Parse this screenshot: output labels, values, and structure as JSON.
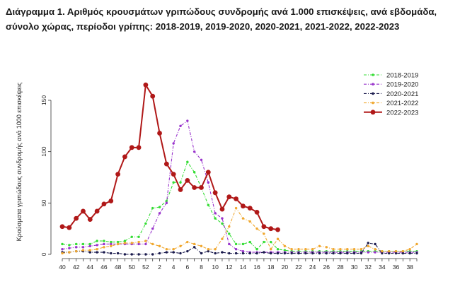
{
  "chart_data": {
    "type": "line",
    "title": "Διάγραμμα 1. Αριθμός κρουσμάτων γριπώδους συνδρομής ανά 1.000 επισκέψεις, ανά εβδομάδα, σύνολο χώρας, περίοδοι γρίπης: 2018-2019, 2019-2020, 2020-2021, 2021-2022, 2022-2023",
    "xlabel": "",
    "ylabel": "Κρούσματα γριπώδους συνδρομής ανά 1000 επισκέψεις",
    "x": [
      "40",
      "41",
      "42",
      "43",
      "44",
      "45",
      "46",
      "47",
      "48",
      "49",
      "50",
      "51",
      "52",
      "1",
      "2",
      "3",
      "4",
      "5",
      "6",
      "7",
      "8",
      "9",
      "10",
      "11",
      "12",
      "13",
      "14",
      "15",
      "16",
      "17",
      "18",
      "19",
      "20",
      "21",
      "22",
      "23",
      "24",
      "25",
      "26",
      "27",
      "28",
      "29",
      "30",
      "31",
      "32",
      "33",
      "34",
      "35",
      "36",
      "37",
      "38",
      "39"
    ],
    "x_tick_labels": [
      "40",
      "42",
      "44",
      "46",
      "48",
      "50",
      "52",
      "2",
      "4",
      "6",
      "8",
      "10",
      "12",
      "14",
      "16",
      "18",
      "20",
      "22",
      "24",
      "26",
      "28",
      "30",
      "32",
      "34",
      "36",
      "38"
    ],
    "yticks": [
      0,
      50,
      100,
      150
    ],
    "ylim": [
      0,
      175
    ],
    "grid": false,
    "legend_position": "top-right",
    "series": [
      {
        "name": "2018-2019",
        "color": "#33dd33",
        "style": "dashdot",
        "values": [
          10,
          9,
          10,
          10,
          10,
          13,
          13,
          12,
          12,
          13,
          17,
          17,
          30,
          45,
          46,
          52,
          70,
          70,
          90,
          80,
          65,
          48,
          35,
          30,
          20,
          10,
          10,
          12,
          5,
          12,
          12,
          5,
          4,
          3,
          3,
          3,
          3,
          3,
          3,
          3,
          3,
          3,
          3,
          3,
          3,
          3,
          3,
          3,
          3,
          3,
          3,
          3
        ]
      },
      {
        "name": "2019-2020",
        "color": "#9933cc",
        "style": "dashdot",
        "values": [
          5,
          6,
          7,
          7,
          8,
          9,
          10,
          10,
          10,
          10,
          10,
          10,
          10,
          25,
          40,
          50,
          108,
          125,
          130,
          100,
          92,
          70,
          40,
          35,
          10,
          5,
          3,
          2,
          2,
          2,
          2,
          2,
          2,
          2,
          2,
          2,
          2,
          2,
          2,
          2,
          2,
          2,
          2,
          2,
          2,
          2,
          2,
          2,
          2,
          2,
          2,
          2
        ]
      },
      {
        "name": "2020-2021",
        "color": "#1a1a4d",
        "style": "dashdot",
        "values": [
          2,
          2,
          3,
          3,
          2,
          2,
          2,
          1,
          1,
          0,
          0,
          0,
          0,
          0,
          1,
          2,
          2,
          1,
          3,
          7,
          1,
          3,
          1,
          2,
          1,
          1,
          1,
          1,
          1,
          2,
          1,
          1,
          1,
          1,
          1,
          1,
          1,
          1,
          1,
          1,
          1,
          1,
          1,
          1,
          11,
          10,
          1,
          1,
          1,
          1,
          1,
          1
        ]
      },
      {
        "name": "2021-2022",
        "color": "#f0a830",
        "style": "dashdot",
        "values": [
          1,
          2,
          3,
          4,
          4,
          5,
          7,
          8,
          10,
          11,
          11,
          12,
          13,
          10,
          8,
          5,
          5,
          8,
          12,
          10,
          8,
          5,
          5,
          15,
          27,
          45,
          35,
          32,
          25,
          20,
          5,
          15,
          8,
          5,
          5,
          5,
          5,
          8,
          7,
          5,
          5,
          5,
          5,
          5,
          8,
          5,
          3,
          3,
          3,
          3,
          5,
          10
        ]
      },
      {
        "name": "2022-2023",
        "color": "#b01818",
        "style": "solid",
        "values": [
          27,
          26,
          35,
          42,
          34,
          42,
          49,
          52,
          78,
          95,
          104,
          104,
          165,
          154,
          118,
          88,
          78,
          63,
          72,
          65,
          65,
          80,
          60,
          44,
          56,
          54,
          47,
          45,
          41,
          27,
          25,
          24,
          null,
          null,
          null,
          null,
          null,
          null,
          null,
          null,
          null,
          null,
          null,
          null,
          null,
          null,
          null,
          null,
          null,
          null,
          null,
          null
        ]
      }
    ]
  }
}
